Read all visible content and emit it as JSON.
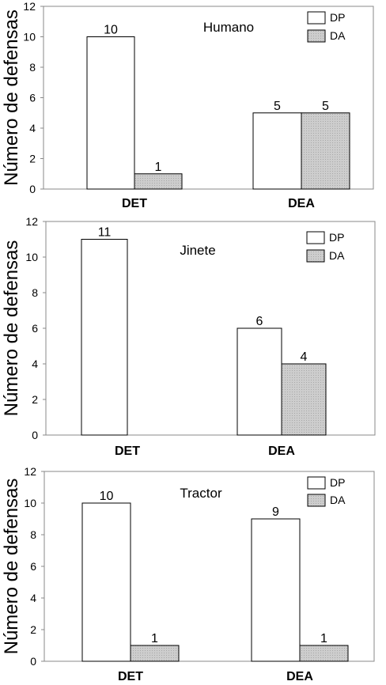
{
  "chart_data": [
    {
      "type": "bar",
      "title": "Humano",
      "ylabel": "Número de defensas",
      "categories": [
        "DET",
        "DEA"
      ],
      "ylim": [
        0,
        12
      ],
      "yticks": [
        0,
        2,
        4,
        6,
        8,
        10,
        12
      ],
      "series": [
        {
          "name": "DP",
          "values": [
            10,
            5
          ],
          "color": "#ffffff"
        },
        {
          "name": "DA",
          "values": [
            1,
            5
          ],
          "color": "#c8c8c8"
        }
      ],
      "data_labels": [
        [
          "10",
          "5"
        ],
        [
          "1",
          "5"
        ]
      ],
      "legend": "top-right"
    },
    {
      "type": "bar",
      "title": "Jinete",
      "ylabel": "Número de defensas",
      "categories": [
        "DET",
        "DEA"
      ],
      "ylim": [
        0,
        12
      ],
      "yticks": [
        0,
        2,
        4,
        6,
        8,
        10,
        12
      ],
      "series": [
        {
          "name": "DP",
          "values": [
            11,
            6
          ],
          "color": "#ffffff"
        },
        {
          "name": "DA",
          "values": [
            0,
            4
          ],
          "color": "#c8c8c8"
        }
      ],
      "data_labels": [
        [
          "11",
          "6"
        ],
        [
          "",
          "4"
        ]
      ],
      "legend": "top-right"
    },
    {
      "type": "bar",
      "title": "Tractor",
      "ylabel": "Número de defensas",
      "categories": [
        "DET",
        "DEA"
      ],
      "ylim": [
        0,
        12
      ],
      "yticks": [
        0,
        2,
        4,
        6,
        8,
        10,
        12
      ],
      "series": [
        {
          "name": "DP",
          "values": [
            10,
            9
          ],
          "color": "#ffffff"
        },
        {
          "name": "DA",
          "values": [
            1,
            1
          ],
          "color": "#c8c8c8"
        }
      ],
      "data_labels": [
        [
          "10",
          "9"
        ],
        [
          "1",
          "1"
        ]
      ],
      "legend": "top-right"
    }
  ]
}
